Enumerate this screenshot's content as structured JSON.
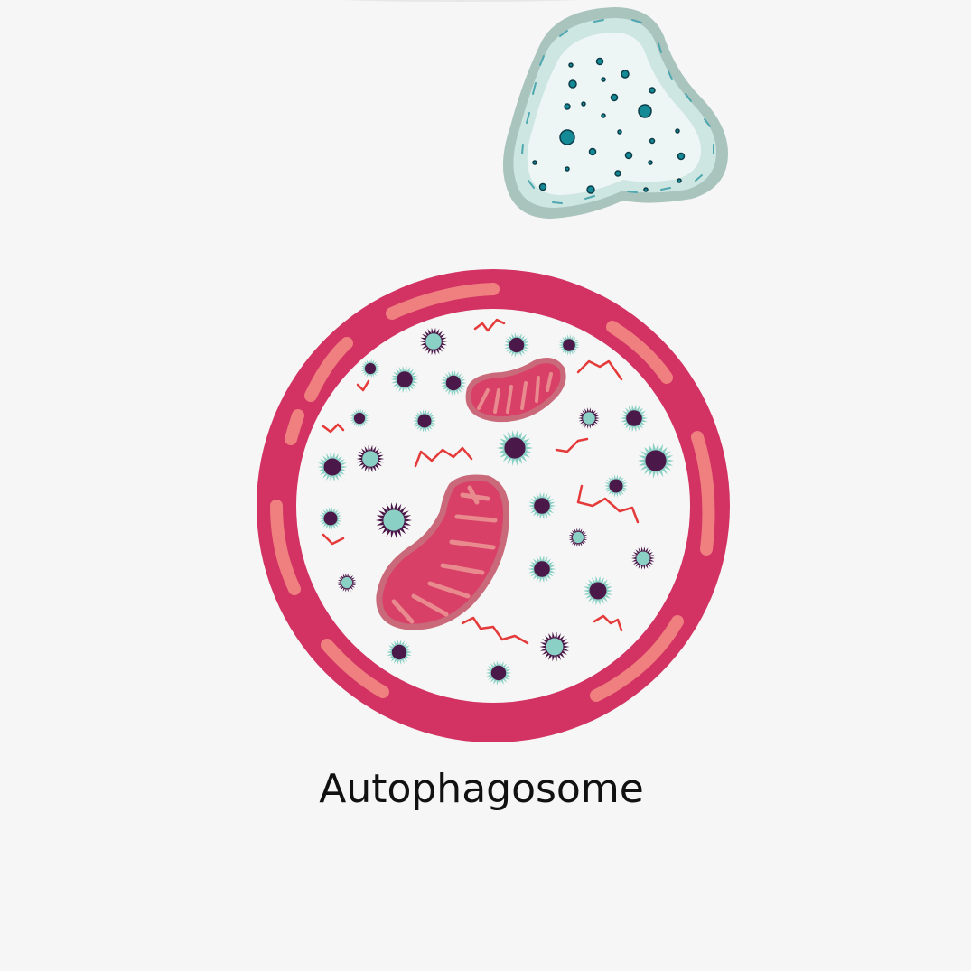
{
  "diagram": {
    "caption": "Autophagosome",
    "colors": {
      "background": "#f6f6f6",
      "membrane": "#d23363",
      "membrane_highlight": "#f08080",
      "lumen": "#f6f6f6",
      "mito_outer": "#c9697a",
      "mito_fill": "#d94068",
      "mito_cristae": "#e98b8e",
      "protein_dark": "#4a1849",
      "protein_teal": "#8ad0c4",
      "rna_strand": "#e53a3a",
      "lysosome_outer": "#a9c3bd",
      "lysosome_mid": "#cde6e2",
      "lysosome_inner": "#eef6f5",
      "lysosome_dots": "#138a96"
    }
  }
}
